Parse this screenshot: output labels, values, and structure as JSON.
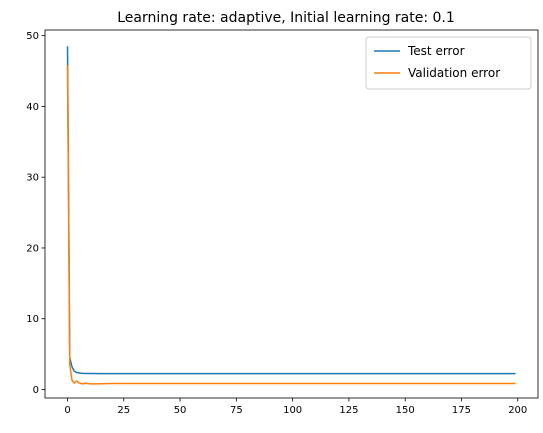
{
  "chart_data": {
    "type": "line",
    "title": "Learning rate: adaptive, Initial learning rate: 0.1",
    "xlabel": "",
    "ylabel": "",
    "xlim": [
      -10,
      209
    ],
    "ylim": [
      -1.2,
      50.8
    ],
    "xticks": [
      0,
      25,
      50,
      75,
      100,
      125,
      150,
      175,
      200
    ],
    "yticks": [
      0,
      10,
      20,
      30,
      40,
      50
    ],
    "grid": false,
    "legend_placement": "top-right",
    "series": [
      {
        "name": "Test error",
        "color": "#1f77b4",
        "x": [
          0,
          1,
          2,
          3,
          4,
          5,
          6,
          7,
          8,
          10,
          15,
          20,
          30,
          50,
          75,
          100,
          125,
          150,
          175,
          199
        ],
        "y": [
          48.5,
          4.5,
          3.2,
          2.6,
          2.4,
          2.35,
          2.3,
          2.28,
          2.27,
          2.26,
          2.25,
          2.25,
          2.25,
          2.25,
          2.25,
          2.25,
          2.25,
          2.25,
          2.25,
          2.25
        ]
      },
      {
        "name": "Validation error",
        "color": "#ff7f0e",
        "x": [
          0,
          1,
          2,
          3,
          4,
          5,
          6,
          7,
          8,
          9,
          10,
          12,
          15,
          20,
          30,
          50,
          75,
          100,
          125,
          150,
          175,
          199
        ],
        "y": [
          45.8,
          3.5,
          1.3,
          0.9,
          1.2,
          0.95,
          0.85,
          0.8,
          0.9,
          0.85,
          0.8,
          0.8,
          0.82,
          0.85,
          0.85,
          0.85,
          0.85,
          0.85,
          0.85,
          0.85,
          0.85,
          0.85
        ]
      }
    ]
  }
}
